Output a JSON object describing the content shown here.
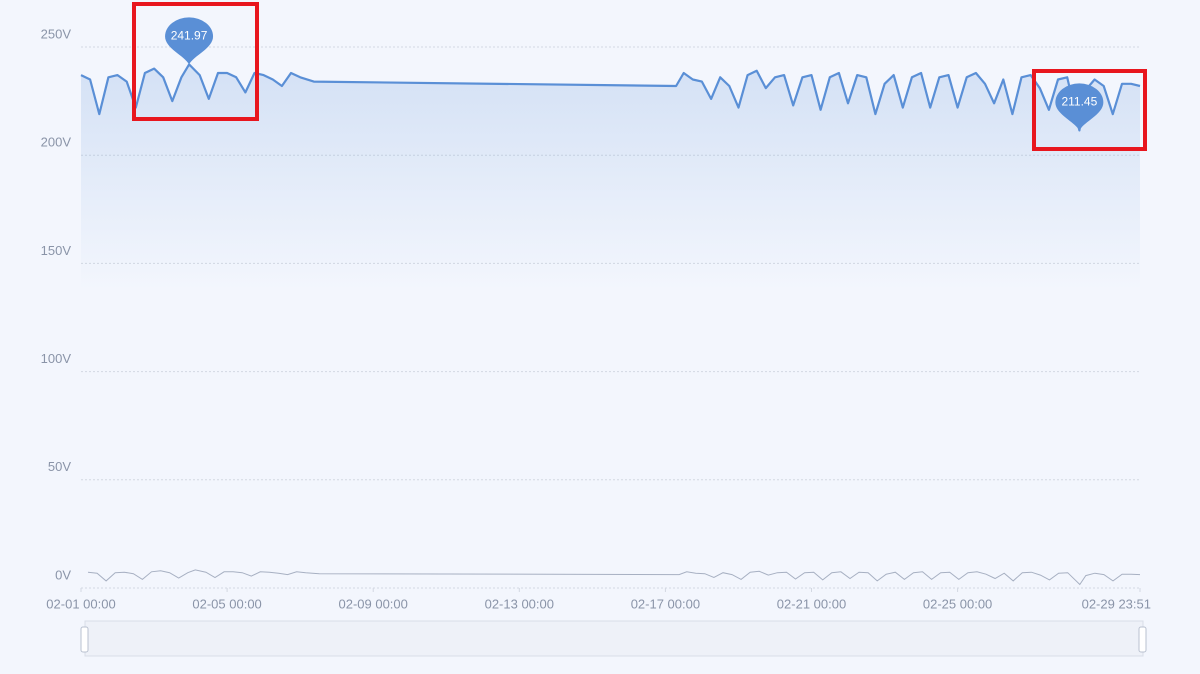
{
  "chart_data": {
    "type": "line",
    "ylim": [
      0,
      250
    ],
    "yticks": [
      {
        "value": 0,
        "label": "0V"
      },
      {
        "value": 50,
        "label": "50V"
      },
      {
        "value": 100,
        "label": "100V"
      },
      {
        "value": 150,
        "label": "150V"
      },
      {
        "value": 200,
        "label": "200V"
      },
      {
        "value": 250,
        "label": "250V"
      }
    ],
    "xlim": [
      "02-01 00:00",
      "02-29 23:51"
    ],
    "xticks": [
      "02-01 00:00",
      "02-05 00:00",
      "02-09 00:00",
      "02-13 00:00",
      "02-17 00:00",
      "02-21 00:00",
      "02-25 00:00",
      "02-29 23:51"
    ],
    "grid": true,
    "x": [
      "02-01 00:00",
      "02-01 06:00",
      "02-01 12:00",
      "02-01 18:00",
      "02-02 00:00",
      "02-02 06:00",
      "02-02 12:00",
      "02-02 18:00",
      "02-03 00:00",
      "02-03 06:00",
      "02-03 12:00",
      "02-03 18:00",
      "02-03 23:00",
      "02-04 06:00",
      "02-04 12:00",
      "02-04 18:00",
      "02-05 00:00",
      "02-05 06:00",
      "02-05 12:00",
      "02-05 18:00",
      "02-06 00:00",
      "02-06 06:00",
      "02-06 12:00",
      "02-06 18:00",
      "02-07 00:00",
      "02-07 09:00",
      "02-17 07:00",
      "02-17 12:00",
      "02-17 18:00",
      "02-18 00:00",
      "02-18 06:00",
      "02-18 12:00",
      "02-18 18:00",
      "02-19 00:00",
      "02-19 06:00",
      "02-19 12:00",
      "02-19 18:00",
      "02-20 00:00",
      "02-20 06:00",
      "02-20 12:00",
      "02-20 18:00",
      "02-21 00:00",
      "02-21 06:00",
      "02-21 12:00",
      "02-21 18:00",
      "02-22 00:00",
      "02-22 06:00",
      "02-22 12:00",
      "02-22 18:00",
      "02-23 00:00",
      "02-23 06:00",
      "02-23 12:00",
      "02-23 18:00",
      "02-24 00:00",
      "02-24 06:00",
      "02-24 12:00",
      "02-24 18:00",
      "02-25 00:00",
      "02-25 06:00",
      "02-25 12:00",
      "02-25 18:00",
      "02-26 00:00",
      "02-26 06:00",
      "02-26 12:00",
      "02-26 18:00",
      "02-27 00:00",
      "02-27 06:00",
      "02-27 12:00",
      "02-27 18:00",
      "02-28 00:00",
      "02-28 08:00",
      "02-28 12:00",
      "02-28 18:00",
      "02-29 00:00",
      "02-29 06:00",
      "02-29 12:00",
      "02-29 18:00",
      "02-29 23:51"
    ],
    "series": [
      {
        "color": "#5a8fd6",
        "values": [
          237,
          235,
          219,
          236,
          237,
          234,
          222,
          238,
          240,
          236,
          225,
          236,
          241.97,
          237,
          226,
          238,
          238,
          236,
          229,
          238,
          237,
          235,
          232,
          238,
          236,
          234,
          232,
          238,
          235,
          234,
          226,
          236,
          232,
          222,
          237,
          239,
          231,
          236,
          237,
          223,
          236,
          237,
          221,
          236,
          238,
          224,
          237,
          236,
          219,
          233,
          237,
          222,
          236,
          238,
          222,
          236,
          237,
          222,
          236,
          238,
          233,
          224,
          235,
          219,
          236,
          237,
          231,
          221,
          235,
          236,
          211.45,
          230,
          235,
          232,
          219,
          233,
          233,
          232
        ]
      }
    ],
    "mark_points": [
      {
        "x": "02-03 23:00",
        "value": 241.97
      },
      {
        "x": "02-28 08:00",
        "value": 211.45
      }
    ]
  }
}
